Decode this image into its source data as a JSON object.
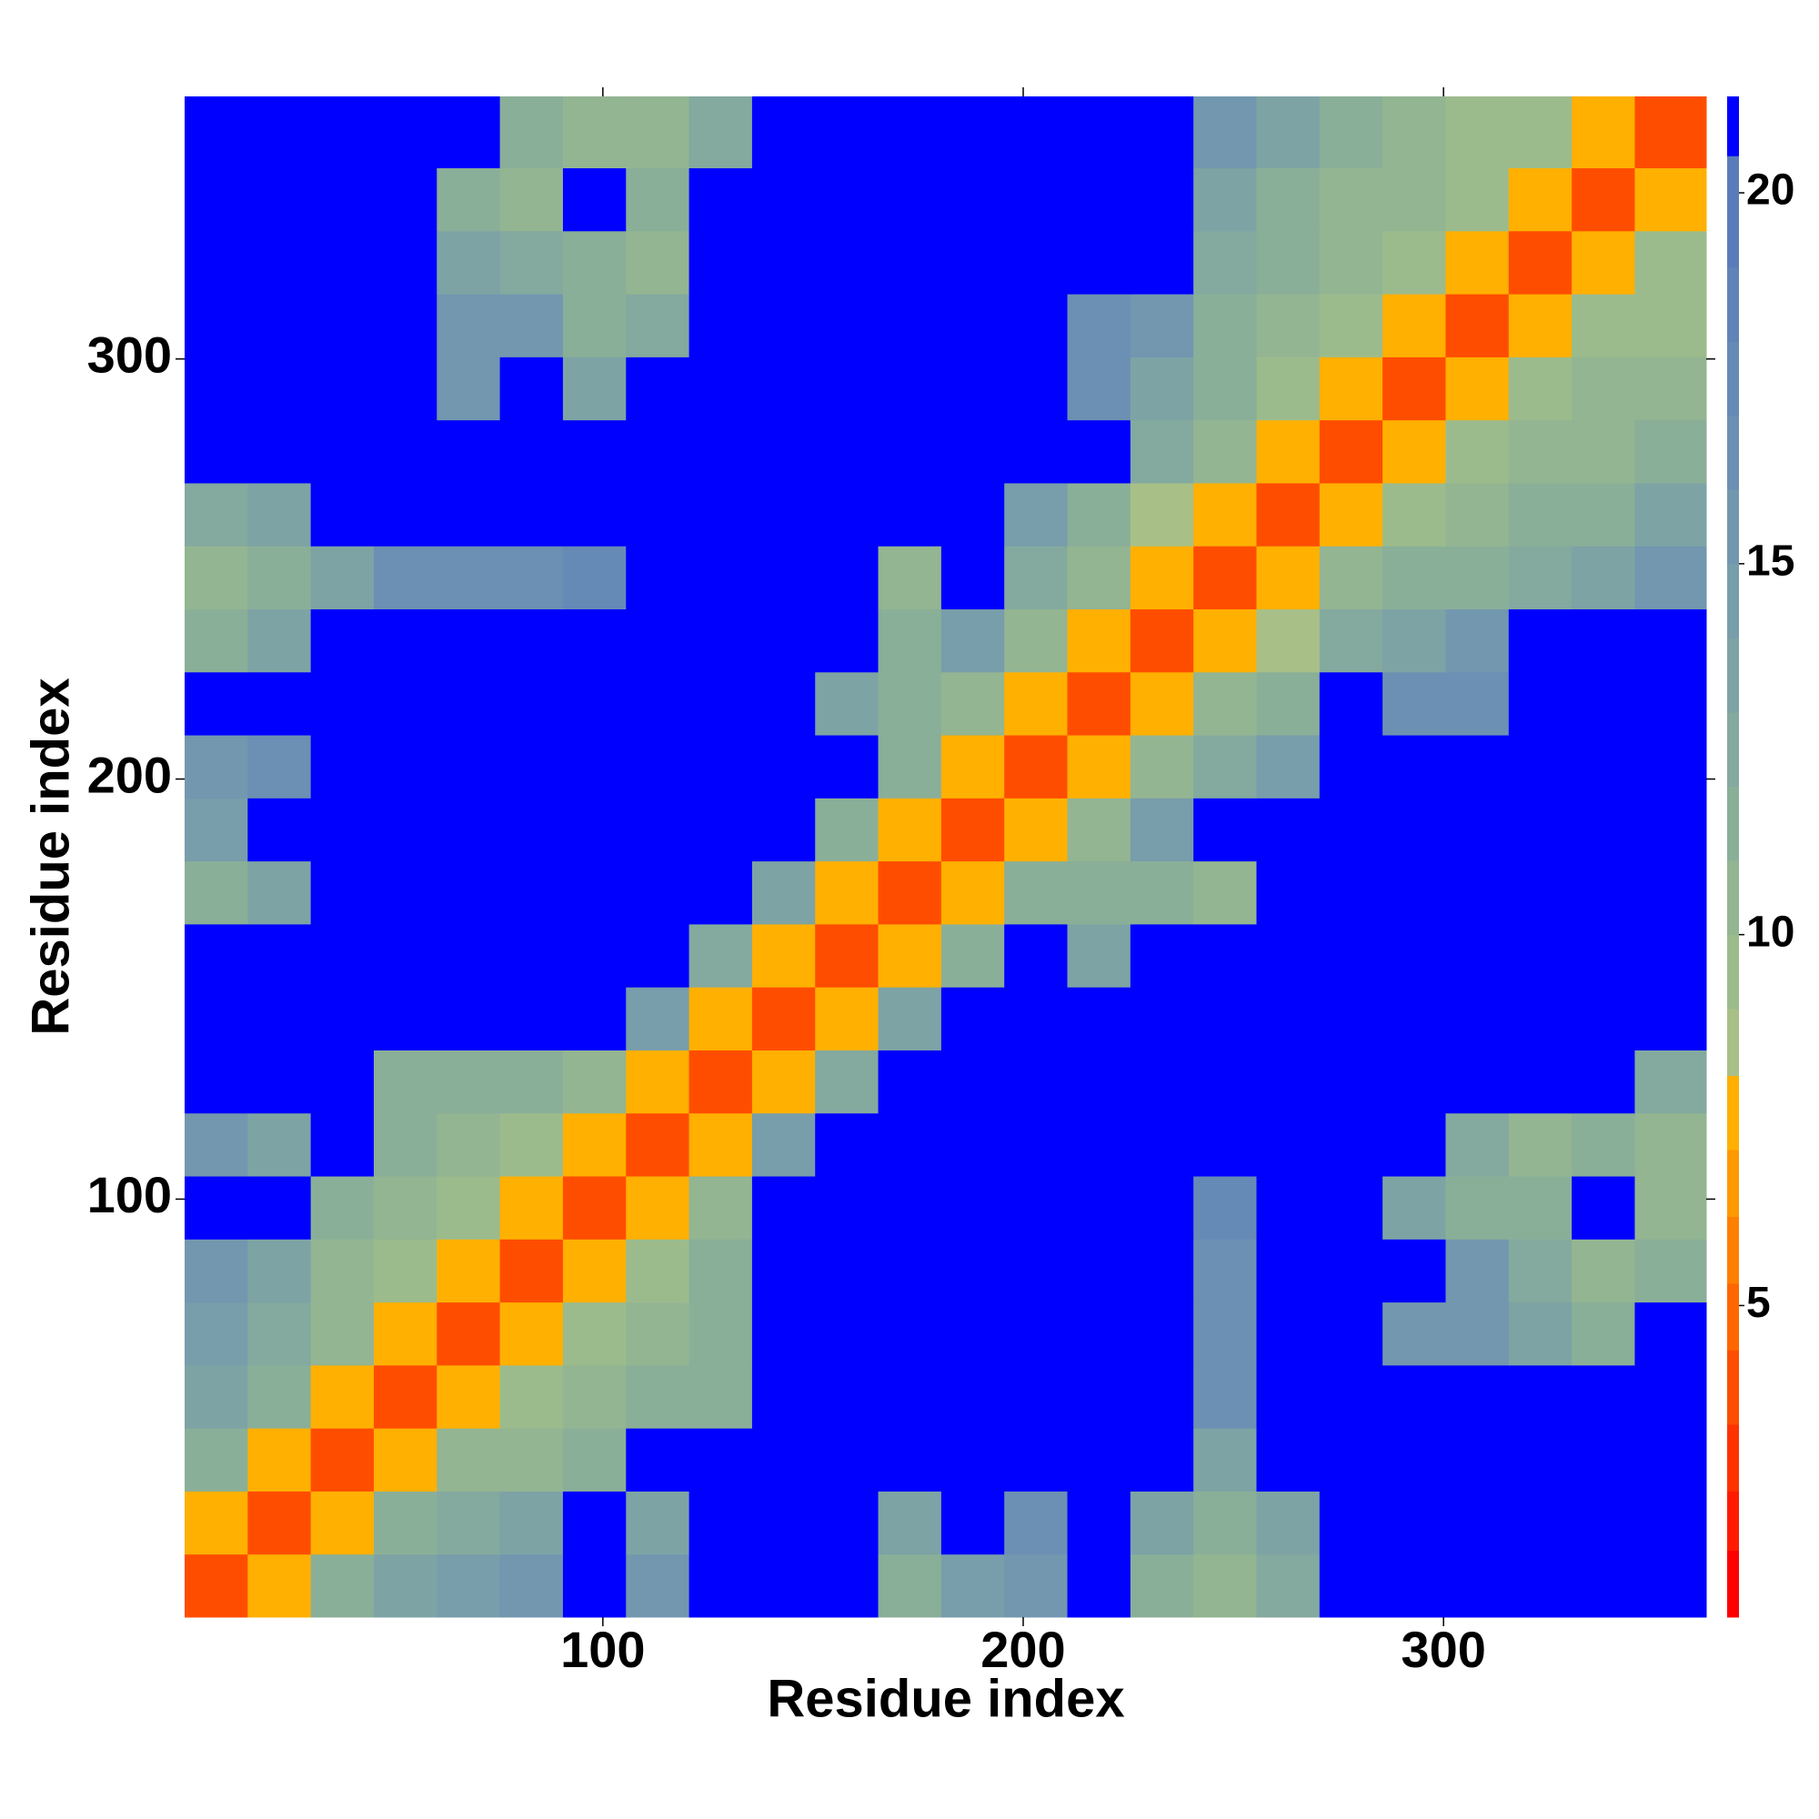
{
  "chart_data": {
    "type": "heatmap",
    "xlabel": "Residue index",
    "ylabel": "Residue index",
    "xlim": [
      0.5,
      362.5
    ],
    "ylim": [
      0.5,
      362.5
    ],
    "xticks": [
      100,
      200,
      300
    ],
    "yticks": [
      100,
      200,
      300
    ],
    "bins": [
      0.5,
      15.5,
      30.5,
      45.5,
      60.5,
      75.5,
      90.5,
      105.5,
      120.5,
      135.5,
      150.5,
      165.5,
      180.5,
      195.5,
      210.5,
      225.5,
      240.5,
      255.5,
      270.5,
      285.5,
      300.5,
      315.5,
      330.5,
      345.5,
      362.5
    ],
    "clim": [
      0.8,
      21.3
    ],
    "cticks": [
      5,
      10,
      15,
      20
    ],
    "colorscale": [
      [
        1.7,
        "#ff0000"
      ],
      [
        2.5,
        "#ff1a00"
      ],
      [
        3.4,
        "#ff3300"
      ],
      [
        4.4,
        "#ff4d00"
      ],
      [
        5.3,
        "#ff6600"
      ],
      [
        6.2,
        "#ff8000"
      ],
      [
        7.1,
        "#ff9900"
      ],
      [
        8.1,
        "#ffb000"
      ],
      [
        9.0,
        "#a8c088"
      ],
      [
        10.0,
        "#9cbb8c"
      ],
      [
        11.0,
        "#93b592"
      ],
      [
        12.0,
        "#8aaf98"
      ],
      [
        13.0,
        "#84a99f"
      ],
      [
        14.0,
        "#7ea3a5"
      ],
      [
        15.0,
        "#789dab"
      ],
      [
        16.0,
        "#7297af"
      ],
      [
        17.0,
        "#6c90b3"
      ],
      [
        18.0,
        "#668ab6"
      ],
      [
        19.0,
        "#6083b8"
      ],
      [
        20.5,
        "#5a7cba"
      ],
      [
        21.3,
        "#0000ff"
      ]
    ],
    "z": [
      [
        4,
        8,
        12,
        14,
        15,
        16,
        21,
        16,
        21,
        21,
        21,
        12,
        15,
        16,
        21,
        12,
        11,
        13,
        21,
        21,
        21,
        21,
        21,
        21
      ],
      [
        8,
        4,
        8,
        12,
        13,
        14,
        21,
        14,
        21,
        21,
        21,
        14,
        21,
        17,
        21,
        14,
        12,
        14,
        21,
        21,
        21,
        21,
        21,
        21
      ],
      [
        12,
        8,
        4,
        8,
        11,
        11,
        12,
        21,
        21,
        21,
        21,
        21,
        21,
        21,
        21,
        21,
        14,
        21,
        21,
        21,
        21,
        21,
        21,
        21
      ],
      [
        14,
        12,
        8,
        4,
        8,
        10,
        11,
        12,
        12,
        21,
        21,
        21,
        21,
        21,
        21,
        21,
        17,
        21,
        21,
        21,
        21,
        21,
        21,
        21
      ],
      [
        15,
        13,
        11,
        8,
        4,
        8,
        10,
        11,
        12,
        21,
        21,
        21,
        21,
        21,
        21,
        21,
        17,
        21,
        21,
        16,
        16,
        14,
        12,
        21
      ],
      [
        16,
        14,
        11,
        10,
        8,
        4,
        8,
        10,
        12,
        21,
        21,
        21,
        21,
        21,
        21,
        21,
        17,
        21,
        21,
        21,
        16,
        13,
        11,
        12
      ],
      [
        21,
        21,
        12,
        11,
        10,
        8,
        4,
        8,
        11,
        21,
        21,
        21,
        21,
        21,
        21,
        21,
        18,
        21,
        21,
        14,
        12,
        12,
        21,
        11
      ],
      [
        16,
        14,
        21,
        12,
        11,
        10,
        8,
        4,
        8,
        15,
        21,
        21,
        21,
        21,
        21,
        21,
        21,
        21,
        21,
        21,
        13,
        11,
        12,
        11
      ],
      [
        21,
        21,
        21,
        12,
        12,
        12,
        11,
        8,
        4,
        8,
        13,
        21,
        21,
        21,
        21,
        21,
        21,
        21,
        21,
        21,
        21,
        21,
        21,
        13
      ],
      [
        21,
        21,
        21,
        21,
        21,
        21,
        21,
        15,
        8,
        4,
        8,
        14,
        21,
        21,
        21,
        21,
        21,
        21,
        21,
        21,
        21,
        21,
        21,
        21
      ],
      [
        21,
        21,
        21,
        21,
        21,
        21,
        21,
        21,
        13,
        8,
        4,
        8,
        12,
        21,
        14,
        21,
        21,
        21,
        21,
        21,
        21,
        21,
        21,
        21
      ],
      [
        12,
        14,
        21,
        21,
        21,
        21,
        21,
        21,
        21,
        14,
        8,
        4,
        8,
        12,
        12,
        12,
        11,
        21,
        21,
        21,
        21,
        21,
        21,
        21
      ],
      [
        15,
        21,
        21,
        21,
        21,
        21,
        21,
        21,
        21,
        21,
        12,
        8,
        4,
        8,
        11,
        15,
        21,
        21,
        21,
        21,
        21,
        21,
        21,
        21
      ],
      [
        16,
        17,
        21,
        21,
        21,
        21,
        21,
        21,
        21,
        21,
        21,
        12,
        8,
        4,
        8,
        11,
        13,
        15,
        21,
        21,
        21,
        21,
        21,
        21
      ],
      [
        21,
        21,
        21,
        21,
        21,
        21,
        21,
        21,
        21,
        21,
        14,
        12,
        11,
        8,
        4,
        8,
        11,
        12,
        21,
        17,
        17,
        21,
        21,
        21
      ],
      [
        12,
        14,
        21,
        21,
        21,
        21,
        21,
        21,
        21,
        21,
        21,
        12,
        15,
        11,
        8,
        4,
        8,
        9,
        13,
        14,
        16,
        21,
        21,
        21
      ],
      [
        11,
        12,
        14,
        17,
        17,
        17,
        18,
        21,
        21,
        21,
        21,
        11,
        21,
        13,
        11,
        8,
        4,
        8,
        11,
        12,
        12,
        13,
        14,
        16
      ],
      [
        13,
        14,
        21,
        21,
        21,
        21,
        21,
        21,
        21,
        21,
        21,
        21,
        21,
        15,
        12,
        9,
        8,
        4,
        8,
        10,
        11,
        12,
        12,
        14
      ],
      [
        21,
        21,
        21,
        21,
        21,
        21,
        21,
        21,
        21,
        21,
        21,
        21,
        21,
        21,
        21,
        13,
        11,
        8,
        4,
        8,
        10,
        11,
        11,
        12
      ],
      [
        21,
        21,
        21,
        21,
        16,
        21,
        14,
        21,
        21,
        21,
        21,
        21,
        21,
        21,
        17,
        14,
        12,
        10,
        8,
        4,
        8,
        10,
        11,
        11
      ],
      [
        21,
        21,
        21,
        21,
        16,
        16,
        12,
        13,
        21,
        21,
        21,
        21,
        21,
        21,
        17,
        16,
        12,
        11,
        10,
        8,
        4,
        8,
        10,
        10
      ],
      [
        21,
        21,
        21,
        21,
        14,
        13,
        12,
        11,
        21,
        21,
        21,
        21,
        21,
        21,
        21,
        21,
        13,
        12,
        11,
        10,
        8,
        4,
        8,
        10
      ],
      [
        21,
        21,
        21,
        21,
        12,
        11,
        21,
        12,
        21,
        21,
        21,
        21,
        21,
        21,
        21,
        21,
        14,
        12,
        11,
        11,
        10,
        8,
        4,
        8
      ],
      [
        21,
        21,
        21,
        21,
        21,
        12,
        11,
        11,
        13,
        21,
        21,
        21,
        21,
        21,
        21,
        21,
        16,
        14,
        12,
        11,
        10,
        10,
        8,
        4
      ]
    ]
  }
}
